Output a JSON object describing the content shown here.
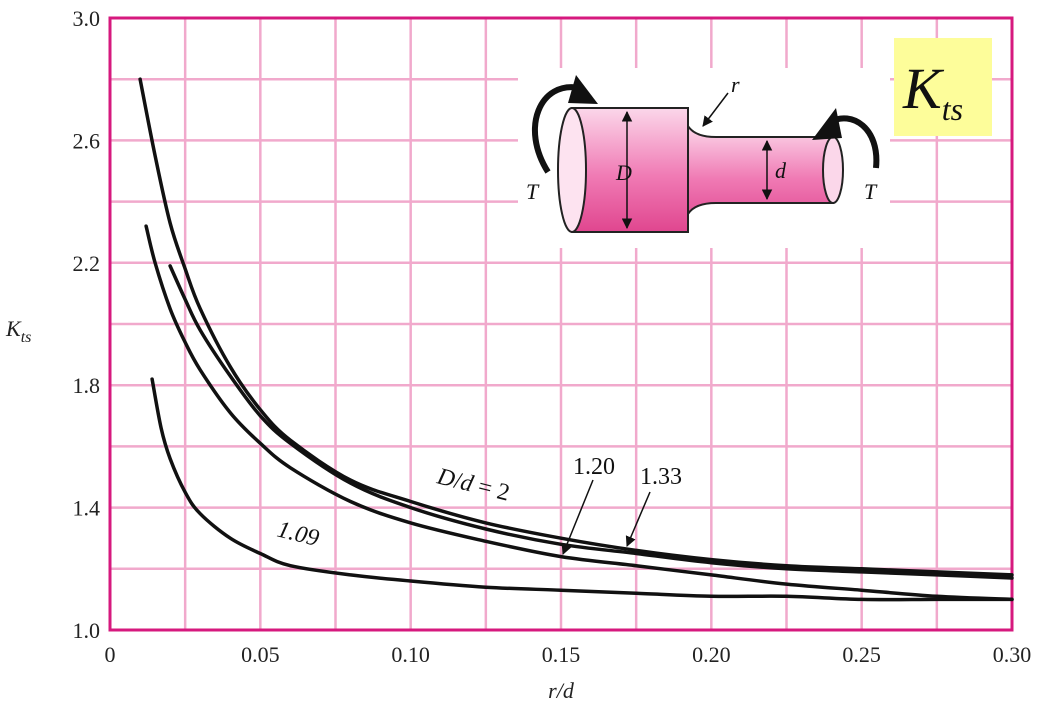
{
  "chart_data": {
    "type": "line",
    "title": "",
    "xlabel": "r/d",
    "ylabel_main": "K",
    "ylabel_sub": "ts",
    "xlim": [
      0,
      0.3
    ],
    "ylim": [
      1.0,
      3.0
    ],
    "x_ticks": [
      0,
      0.05,
      0.1,
      0.15,
      0.2,
      0.25,
      0.3
    ],
    "x_tick_labels": [
      "0",
      "0.05",
      "0.10",
      "0.15",
      "0.20",
      "0.25",
      "0.30"
    ],
    "y_ticks": [
      1.0,
      1.4,
      1.8,
      2.2,
      2.6,
      3.0
    ],
    "y_tick_labels": [
      "1.0",
      "1.4",
      "1.8",
      "2.2",
      "2.6",
      "3.0"
    ],
    "grid": true,
    "grid_step_x": 0.025,
    "grid_step_y": 0.2,
    "colors": {
      "frame": "#d6197e",
      "grid": "#f1a9cc",
      "curve": "#111111",
      "badge": "#fdfd9a",
      "shaft": "#e8559a"
    },
    "series": [
      {
        "name": "D/d = 2",
        "label_parts": [
          "D",
          "/",
          "d",
          " = 2"
        ],
        "x": [
          0.01,
          0.015,
          0.02,
          0.025,
          0.03,
          0.04,
          0.05,
          0.06,
          0.08,
          0.1,
          0.125,
          0.15,
          0.175,
          0.2,
          0.225,
          0.25,
          0.275,
          0.3
        ],
        "y": [
          2.8,
          2.55,
          2.33,
          2.18,
          2.05,
          1.86,
          1.72,
          1.62,
          1.49,
          1.42,
          1.35,
          1.3,
          1.26,
          1.23,
          1.21,
          1.2,
          1.19,
          1.18
        ]
      },
      {
        "name": "1.33",
        "label_parts": [
          "1.33"
        ],
        "x": [
          0.02,
          0.025,
          0.03,
          0.04,
          0.05,
          0.06,
          0.08,
          0.1,
          0.125,
          0.15,
          0.175,
          0.2,
          0.225,
          0.25,
          0.275,
          0.3
        ],
        "y": [
          2.19,
          2.08,
          1.98,
          1.83,
          1.7,
          1.61,
          1.48,
          1.4,
          1.33,
          1.28,
          1.25,
          1.22,
          1.2,
          1.19,
          1.18,
          1.17
        ]
      },
      {
        "name": "1.20",
        "label_parts": [
          "1.20"
        ],
        "x": [
          0.012,
          0.015,
          0.02,
          0.025,
          0.03,
          0.04,
          0.05,
          0.06,
          0.08,
          0.1,
          0.125,
          0.15,
          0.175,
          0.2,
          0.225,
          0.25,
          0.275,
          0.3
        ],
        "y": [
          2.32,
          2.2,
          2.05,
          1.94,
          1.85,
          1.71,
          1.61,
          1.53,
          1.42,
          1.35,
          1.29,
          1.24,
          1.21,
          1.18,
          1.15,
          1.13,
          1.11,
          1.1
        ]
      },
      {
        "name": "1.09",
        "label_parts": [
          "1.09"
        ],
        "x": [
          0.014,
          0.017,
          0.02,
          0.025,
          0.03,
          0.04,
          0.05,
          0.06,
          0.08,
          0.1,
          0.125,
          0.15,
          0.175,
          0.2,
          0.225,
          0.25,
          0.275,
          0.3
        ],
        "y": [
          1.82,
          1.66,
          1.56,
          1.45,
          1.38,
          1.3,
          1.25,
          1.21,
          1.18,
          1.16,
          1.14,
          1.13,
          1.12,
          1.11,
          1.11,
          1.1,
          1.1,
          1.1
        ]
      }
    ],
    "inset": {
      "label_T_left": "T",
      "label_T_right": "T",
      "label_D": "D",
      "label_d": "d",
      "label_r": "r"
    },
    "badge": {
      "main": "K",
      "sub": "ts"
    }
  }
}
